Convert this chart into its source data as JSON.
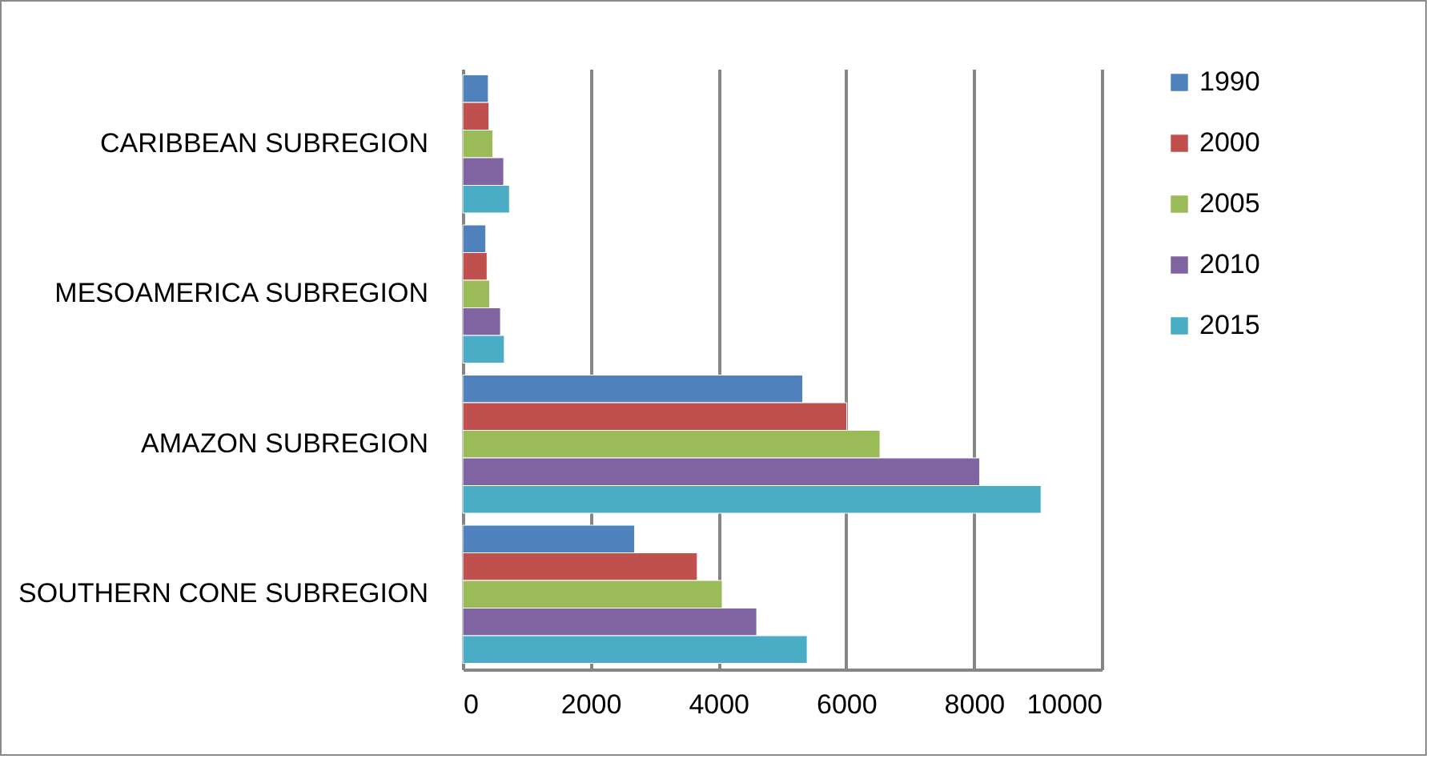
{
  "chart_data": {
    "type": "bar",
    "orientation": "horizontal",
    "categories": [
      "CARIBBEAN SUBREGION",
      "MESOAMERICA SUBREGION",
      "AMAZON SUBREGION",
      "SOUTHERN CONE SUBREGION"
    ],
    "series": [
      {
        "name": "1990",
        "color": "#4f81bd",
        "values": [
          400,
          360,
          5320,
          2690
        ]
      },
      {
        "name": "2000",
        "color": "#c0504d",
        "values": [
          410,
          380,
          6010,
          3670
        ]
      },
      {
        "name": "2005",
        "color": "#9bbb59",
        "values": [
          470,
          420,
          6530,
          4060
        ]
      },
      {
        "name": "2010",
        "color": "#8064a2",
        "values": [
          640,
          590,
          8090,
          4600
        ]
      },
      {
        "name": "2015",
        "color": "#4bacc6",
        "values": [
          730,
          650,
          9050,
          5390
        ]
      }
    ],
    "xlim": [
      0,
      10000
    ],
    "xticks": [
      0,
      2000,
      4000,
      6000,
      8000,
      10000
    ],
    "grid": "x",
    "legend": "right"
  }
}
